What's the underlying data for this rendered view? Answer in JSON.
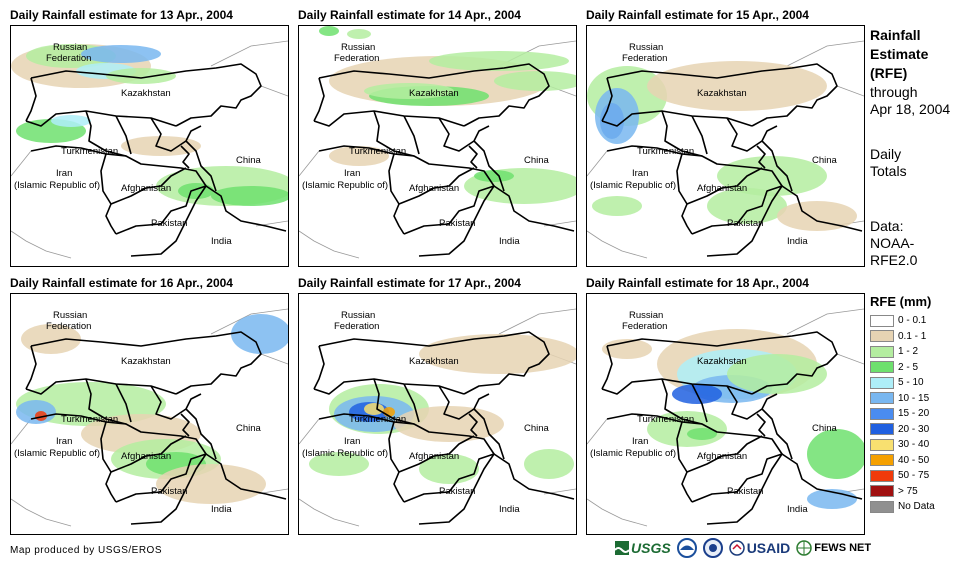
{
  "panels": [
    {
      "title": "Daily Rainfall estimate for 13 Apr., 2004"
    },
    {
      "title": "Daily Rainfall estimate for 14 Apr., 2004"
    },
    {
      "title": "Daily Rainfall estimate for 15 Apr., 2004"
    },
    {
      "title": "Daily Rainfall estimate for 16 Apr., 2004"
    },
    {
      "title": "Daily Rainfall estimate for 17 Apr., 2004"
    },
    {
      "title": "Daily Rainfall estimate for 18 Apr., 2004"
    }
  ],
  "labels": {
    "russia_1": "Russian",
    "russia_2": "Federation",
    "kazakhstan": "Kazakhstan",
    "turkmenistan": "Turkmenistan",
    "iran_1": "Iran",
    "iran_2": "(Islamic Republic of)",
    "afghanistan": "Afghanistan",
    "pakistan": "Pakistan",
    "china": "China",
    "india": "India"
  },
  "sidebar": {
    "title_lines": [
      "Rainfall",
      "Estimate",
      "(RFE)"
    ],
    "through_1": "through",
    "through_2": "Apr 18, 2004",
    "totals_1": "Daily",
    "totals_2": "Totals",
    "data_1": "Data:",
    "data_2": "NOAA-",
    "data_3": "RFE2.0"
  },
  "legend": {
    "title": "RFE (mm)",
    "items": [
      {
        "label": "0 - 0.1",
        "color": "#ffffff"
      },
      {
        "label": "0.1 - 1",
        "color": "#e6d3b3"
      },
      {
        "label": "1 - 2",
        "color": "#b4eda0"
      },
      {
        "label": "2 - 5",
        "color": "#6ee06e"
      },
      {
        "label": "5 - 10",
        "color": "#aeeef8"
      },
      {
        "label": "10 - 15",
        "color": "#79b7f0"
      },
      {
        "label": "15 - 20",
        "color": "#4a8cf0"
      },
      {
        "label": "20 - 30",
        "color": "#2060e0"
      },
      {
        "label": "30 - 40",
        "color": "#f8e070"
      },
      {
        "label": "40 - 50",
        "color": "#f5a000"
      },
      {
        "label": "50 - 75",
        "color": "#f03a0a"
      },
      {
        "label": "> 75",
        "color": "#a01010"
      },
      {
        "label": "No Data",
        "color": "#909090"
      }
    ]
  },
  "footer": {
    "credit": "Map produced by USGS/EROS",
    "logo_usgs": "USGS",
    "logo_usaid": "USAID",
    "logo_fews": "FEWS NET"
  }
}
